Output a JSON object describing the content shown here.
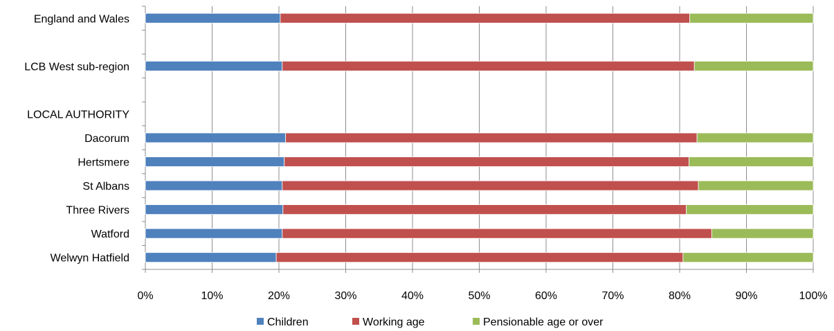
{
  "chart_data": {
    "type": "bar",
    "orientation": "horizontal",
    "stacked": true,
    "categories": [
      "England and Wales",
      "",
      "LCB West sub-region",
      "",
      "LOCAL AUTHORITY",
      "Dacorum",
      "Hertsmere",
      "St Albans",
      "Three Rivers",
      "Watford",
      "Welwyn Hatfield"
    ],
    "series": [
      {
        "name": "Children",
        "color": "#4f81bd",
        "values": [
          20.2,
          null,
          20.5,
          null,
          null,
          21.0,
          20.8,
          20.5,
          20.6,
          20.5,
          19.6
        ]
      },
      {
        "name": "Working age",
        "color": "#c0504d",
        "values": [
          61.3,
          null,
          61.7,
          null,
          null,
          61.6,
          60.6,
          62.3,
          60.4,
          64.3,
          60.9
        ]
      },
      {
        "name": "Pensionable age or over",
        "color": "#9bbb59",
        "values": [
          18.5,
          null,
          17.8,
          null,
          null,
          17.4,
          18.6,
          17.2,
          19.0,
          15.2,
          19.5
        ]
      }
    ],
    "xlim": [
      0,
      100
    ],
    "x_ticks": [
      "0%",
      "10%",
      "20%",
      "30%",
      "40%",
      "50%",
      "60%",
      "70%",
      "80%",
      "90%",
      "100%"
    ],
    "grid": "vertical",
    "legend": "bottom",
    "title": "",
    "xlabel": "",
    "ylabel": ""
  }
}
